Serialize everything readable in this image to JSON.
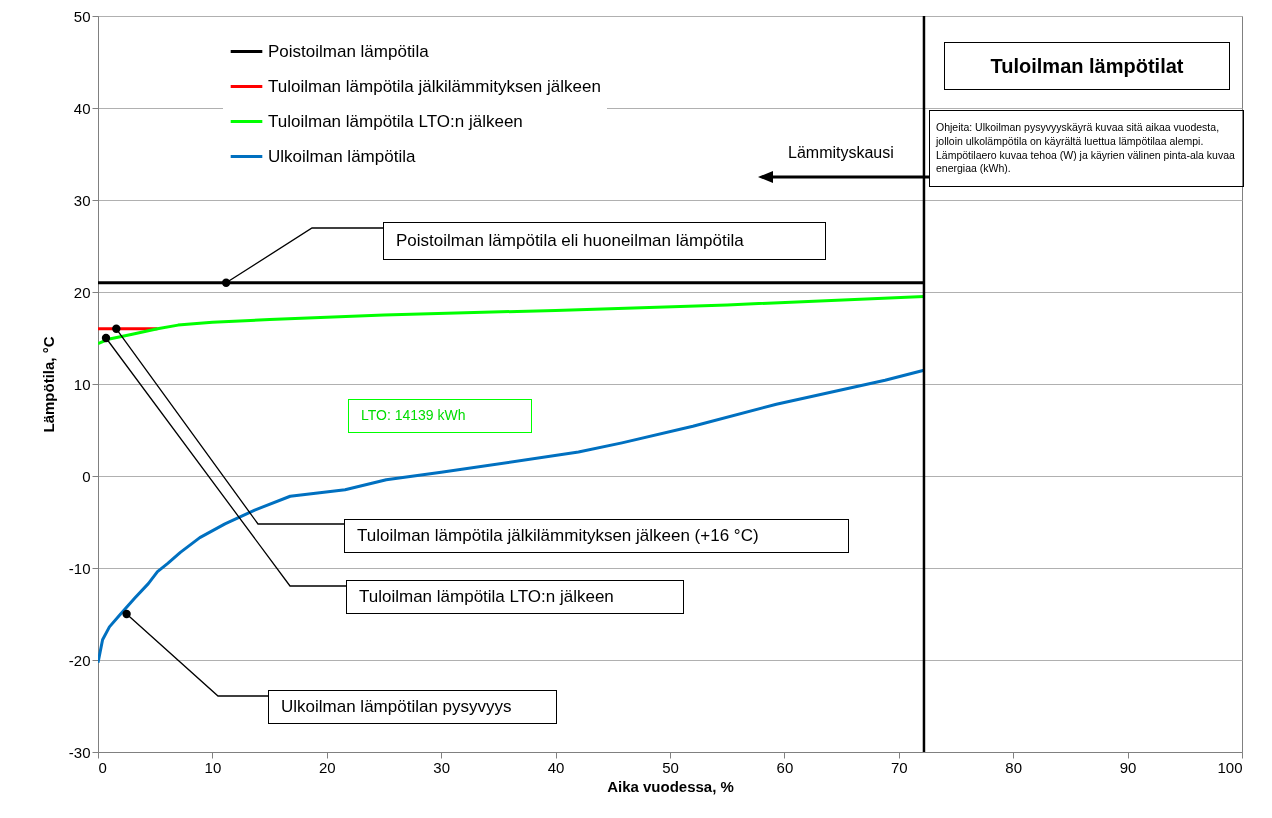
{
  "chart_data": {
    "type": "line",
    "xlabel": "Aika vuodessa, %",
    "ylabel": "Lämpötila, °C",
    "xlim": [
      0,
      100
    ],
    "ylim": [
      -30,
      50
    ],
    "xticks": [
      0,
      10,
      20,
      30,
      40,
      50,
      60,
      70,
      80,
      90,
      100
    ],
    "yticks": [
      -30,
      -20,
      -10,
      0,
      10,
      20,
      30,
      40,
      50
    ],
    "grid": "y",
    "legend": "top left",
    "line_style": "solid",
    "marker": "none",
    "series": [
      {
        "name": "Poistoilman lämpötila",
        "color": "#000000",
        "x": [
          0,
          72.2
        ],
        "values": [
          21,
          21
        ]
      },
      {
        "name": "Tuloilman lämpötila jälkilämmityksen jälkeen",
        "color": "#ff0000",
        "x": [
          0,
          5.2
        ],
        "values": [
          16,
          16
        ]
      },
      {
        "name": "Tuloilman lämpötila LTO:n jälkeen",
        "color": "#00ff00",
        "x": [
          0,
          1,
          3,
          5.2,
          7,
          10,
          15,
          25,
          40,
          55,
          72.2
        ],
        "values": [
          14.4,
          14.9,
          15.4,
          16.0,
          16.4,
          16.7,
          17.0,
          17.5,
          18.0,
          18.6,
          19.5
        ]
      },
      {
        "name": "Ulkoilman lämpötila",
        "color": "#0070c0",
        "x": [
          0,
          0.4,
          1,
          1.9,
          3.2,
          4.4,
          5.2,
          6.1,
          7.2,
          8.9,
          11.1,
          13.7,
          16.8,
          21.6,
          25.2,
          30,
          42,
          45.8,
          52,
          59.3,
          68.8,
          72.2
        ],
        "values": [
          -20.3,
          -17.8,
          -16.4,
          -15.1,
          -13.3,
          -11.7,
          -10.4,
          -9.5,
          -8.3,
          -6.7,
          -5.2,
          -3.7,
          -2.2,
          -1.5,
          -0.4,
          0.4,
          2.6,
          3.6,
          5.4,
          7.8,
          10.4,
          11.5
        ]
      }
    ],
    "ref_lines": [
      {
        "axis": "x",
        "value": 72.2,
        "color": "#000000"
      }
    ],
    "annotations": [
      {
        "text": "Poistoilman lämpötila eli huoneilman lämpötila",
        "x": 11.2,
        "y": 21
      },
      {
        "text": "Tuloilman lämpötila jälkilämmityksen jälkeen (+16 °C)",
        "x": 1.6,
        "y": 16
      },
      {
        "text": "Tuloilman lämpötila LTO:n jälkeen",
        "x": 0.7,
        "y": 15
      },
      {
        "text": "Ulkoilman lämpötilan pysyvyys",
        "x": 2.5,
        "y": -15
      },
      "LTO: 14139 kWh",
      "Lämmityskausi",
      "Tuloilman lämpötilat",
      "Ohjeita: Ulkoilman pysyvyyskäyrä kuvaa sitä aikaa vuodesta, jolloin ulkolämpötila on käyrältä luettua lämpötilaa alempi. Lämpötilaero kuvaa tehoa (W) ja käyrien välinen pinta-ala kuvaa energiaa (kWh)."
    ]
  }
}
